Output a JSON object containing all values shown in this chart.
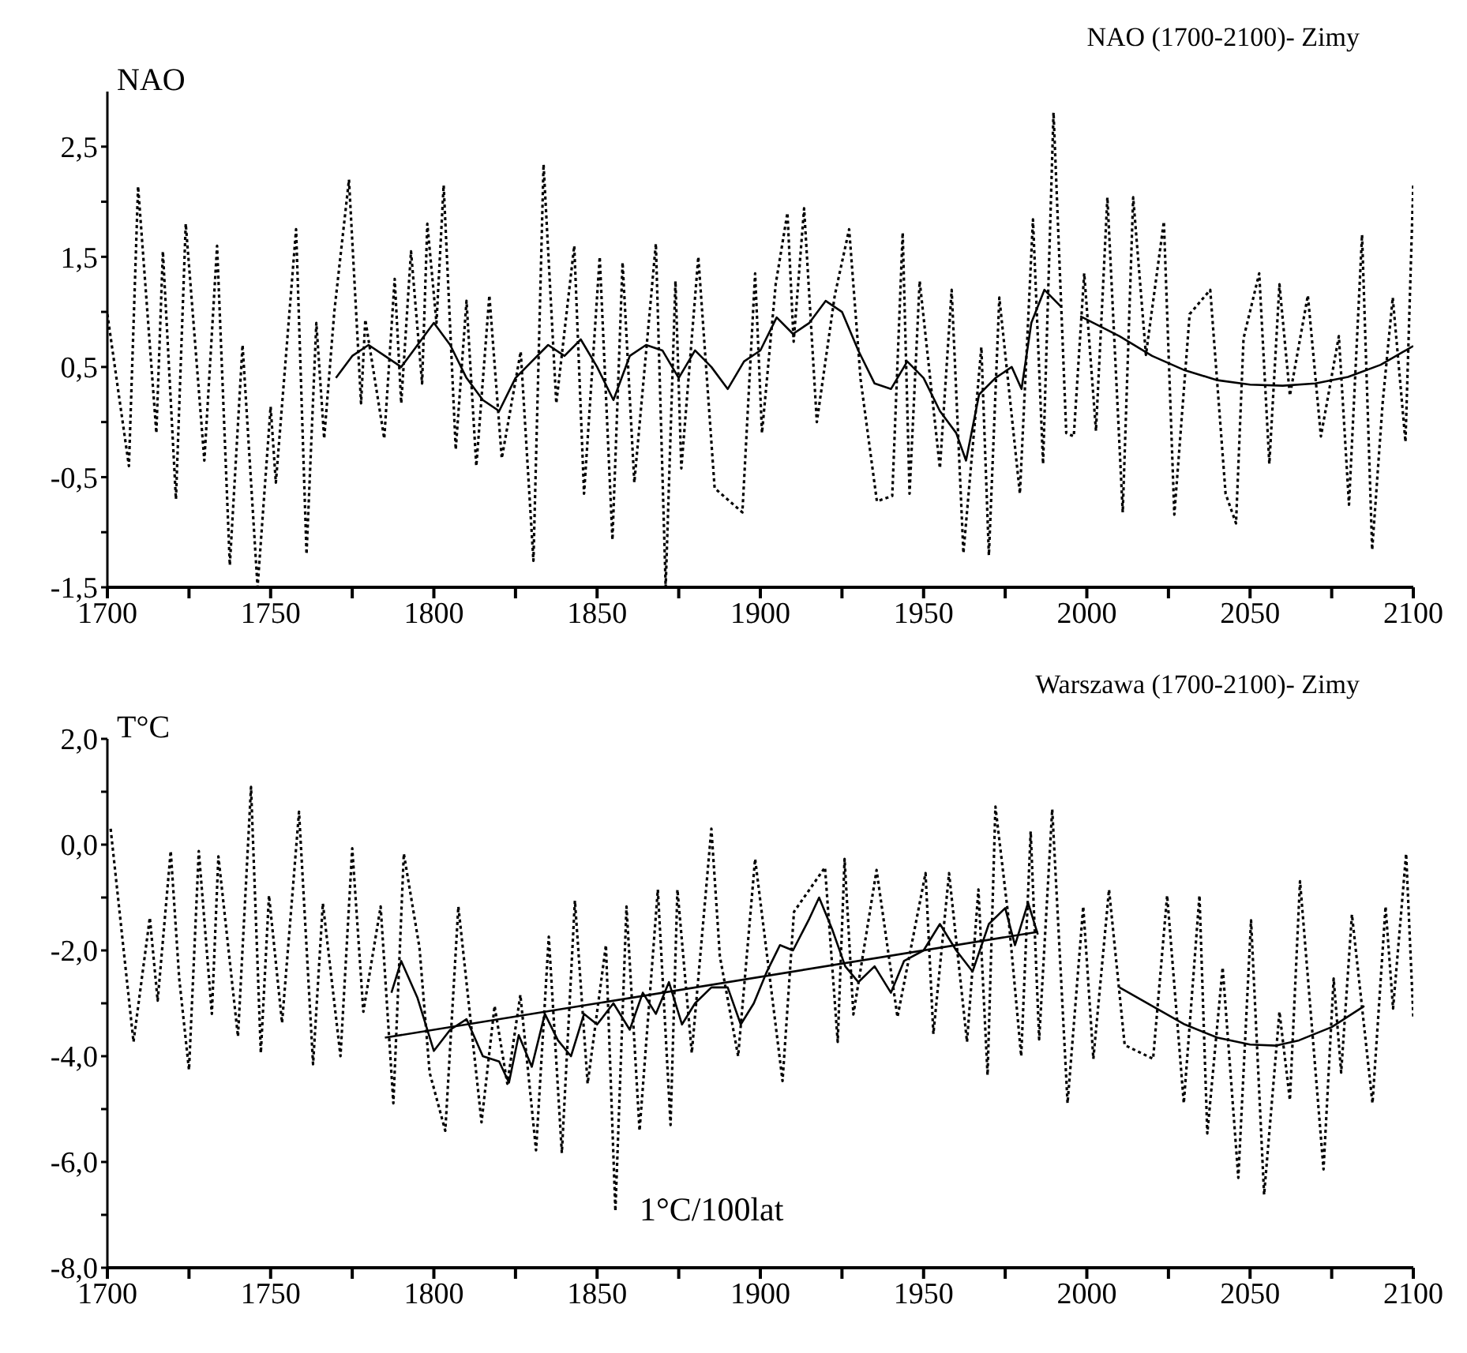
{
  "chart_data": [
    {
      "type": "line",
      "title": "NAO (1700-2100)- Zimy",
      "ylabel": "NAO",
      "xlim": [
        1700,
        2100
      ],
      "xticks": [
        1700,
        {
          "value": 1725,
          "label": null
        },
        1750,
        {
          "value": 1775,
          "label": null
        },
        1800,
        {
          "value": 1825,
          "label": null
        },
        1850,
        {
          "value": 1875,
          "label": null
        },
        1900,
        {
          "value": 1925,
          "label": null
        },
        1950,
        {
          "value": 1975,
          "label": null
        },
        2000,
        {
          "value": 2025,
          "label": null
        },
        2050,
        {
          "value": 2075,
          "label": null
        },
        2100
      ],
      "ylim": [
        -1.5,
        3.0
      ],
      "yticks": [
        {
          "value": -1.5,
          "label": "-1,5"
        },
        {
          "value": -1,
          "label": null
        },
        {
          "value": -0.5,
          "label": "-0,5"
        },
        {
          "value": 0,
          "label": null
        },
        {
          "value": 0.5,
          "label": "0,5"
        },
        {
          "value": 1,
          "label": null
        },
        {
          "value": 1.5,
          "label": "1,5"
        },
        {
          "value": 2,
          "label": null
        },
        {
          "value": 2.5,
          "label": "2,5"
        }
      ],
      "series": [
        {
          "color": "#000000",
          "line_style": "dotted",
          "x": [
            1700,
            1706.6,
            1709.4,
            1715,
            1717,
            1721,
            1724,
            1729.7,
            1733.6,
            1737.5,
            1741.4,
            1746,
            1750,
            1751.6,
            1757.8,
            1761,
            1764,
            1766.4,
            1769.5,
            1774,
            1777.7,
            1779,
            1784.8,
            1788,
            1790,
            1793,
            1796.4,
            1798,
            1800.8,
            1803,
            1806.7,
            1810,
            1813,
            1817,
            1820.8,
            1826.6,
            1830.5,
            1833.6,
            1837.5,
            1843,
            1846,
            1850.8,
            1854.7,
            1857.8,
            1861.4,
            1868,
            1871,
            1874,
            1875.8,
            1881,
            1886,
            1894.5,
            1898.4,
            1900.5,
            1904.7,
            1908.3,
            1910.2,
            1913.4,
            1917.3,
            1922.8,
            1927.2,
            1930.7,
            1935.7,
            1940.4,
            1943.6,
            1945.7,
            1948.8,
            1955,
            1958.6,
            1962.2,
            1967.7,
            1970,
            1973.2,
            1979.5,
            1983.5,
            1986.6,
            1989.8,
            1993.7,
            1996,
            1999.2,
            2002.8,
            2006.3,
            2011,
            2014.2,
            2018.1,
            2023.6,
            2026.8,
            2031.5,
            2037.8,
            2042.5,
            2045.7,
            2048,
            2052.8,
            2055.9,
            2059,
            2062.2,
            2067.7,
            2071.7,
            2077.2,
            2080.3,
            2084.3,
            2087.4,
            2090.6,
            2093.7,
            2097.6,
            2100
          ],
          "values": [
            0.98,
            -0.4,
            2.14,
            -0.1,
            1.55,
            -0.7,
            1.8,
            -0.35,
            1.6,
            -1.3,
            0.7,
            -1.5,
            0.14,
            -0.55,
            1.75,
            -1.2,
            0.9,
            -0.15,
            1.0,
            2.2,
            0.17,
            0.93,
            -0.15,
            1.3,
            0.17,
            1.55,
            0.35,
            1.8,
            0.9,
            2.15,
            -0.25,
            1.1,
            -0.4,
            1.15,
            -0.33,
            0.64,
            -1.26,
            2.34,
            0.17,
            1.6,
            -0.65,
            1.5,
            -1.07,
            1.45,
            -0.55,
            1.62,
            -1.5,
            1.28,
            -0.42,
            1.5,
            -0.6,
            -0.82,
            1.35,
            -0.1,
            1.25,
            1.9,
            0.73,
            1.94,
            0.0,
            1.15,
            1.75,
            0.39,
            -0.72,
            -0.67,
            1.72,
            -0.65,
            1.28,
            -0.42,
            1.2,
            -1.19,
            0.68,
            -1.21,
            1.13,
            -0.65,
            1.84,
            -0.38,
            2.81,
            -0.1,
            -0.13,
            1.35,
            -0.08,
            2.04,
            -0.82,
            2.04,
            0.61,
            1.82,
            -0.84,
            0.98,
            1.2,
            -0.65,
            -0.92,
            0.76,
            1.35,
            -0.38,
            1.25,
            0.24,
            1.15,
            -0.13,
            0.78,
            -0.75,
            1.7,
            -1.16,
            0.17,
            1.13,
            -0.18,
            2.17
          ]
        },
        {
          "color": "#000000",
          "line_style": "solid",
          "x": [
            1770,
            1775,
            1780,
            1785,
            1790,
            1795,
            1800,
            1805,
            1810,
            1815,
            1820,
            1825,
            1830,
            1835,
            1840,
            1845,
            1850,
            1855,
            1860,
            1865,
            1870,
            1875,
            1880,
            1885,
            1890,
            1895,
            1900,
            1905,
            1910,
            1915,
            1920,
            1925,
            1930,
            1935,
            1940,
            1945,
            1950,
            1955,
            1960,
            1963,
            1967,
            1972,
            1977,
            1980,
            1983,
            1987,
            1992
          ],
          "values": [
            0.4,
            0.6,
            0.7,
            0.6,
            0.5,
            0.7,
            0.9,
            0.7,
            0.4,
            0.2,
            0.1,
            0.4,
            0.55,
            0.7,
            0.6,
            0.75,
            0.5,
            0.2,
            0.6,
            0.7,
            0.65,
            0.4,
            0.65,
            0.5,
            0.3,
            0.55,
            0.65,
            0.95,
            0.8,
            0.9,
            1.1,
            1.0,
            0.65,
            0.35,
            0.3,
            0.55,
            0.4,
            0.1,
            -0.1,
            -0.35,
            0.25,
            0.4,
            0.5,
            0.3,
            0.9,
            1.2,
            1.05
          ]
        },
        {
          "color": "#000000",
          "line_style": "solid",
          "x": [
            1998,
            2010,
            2020,
            2030,
            2040,
            2050,
            2060,
            2070,
            2080,
            2090,
            2100
          ],
          "values": [
            0.96,
            0.78,
            0.6,
            0.47,
            0.38,
            0.34,
            0.33,
            0.35,
            0.41,
            0.52,
            0.69
          ]
        }
      ]
    },
    {
      "type": "line",
      "title": "Warszawa (1700-2100)- Zimy",
      "ylabel": "T°C",
      "annotations": [
        "1°C/100lat"
      ],
      "xlim": [
        1700,
        2100
      ],
      "xticks": [
        1700,
        {
          "value": 1725,
          "label": null
        },
        1750,
        {
          "value": 1775,
          "label": null
        },
        1800,
        {
          "value": 1825,
          "label": null
        },
        1850,
        {
          "value": 1875,
          "label": null
        },
        1900,
        {
          "value": 1925,
          "label": null
        },
        1950,
        {
          "value": 1975,
          "label": null
        },
        2000,
        {
          "value": 2025,
          "label": null
        },
        2050,
        {
          "value": 2075,
          "label": null
        },
        2100
      ],
      "ylim": [
        -8,
        2
      ],
      "yticks": [
        {
          "value": -8,
          "label": "-8,0"
        },
        {
          "value": -7,
          "label": null
        },
        {
          "value": -6,
          "label": "-6,0"
        },
        {
          "value": -5,
          "label": null
        },
        {
          "value": -4,
          "label": "-4,0"
        },
        {
          "value": -3,
          "label": null
        },
        {
          "value": -2,
          "label": "-2,0"
        },
        {
          "value": -1,
          "label": null
        },
        {
          "value": 0,
          "label": "0,0"
        },
        {
          "value": 1,
          "label": null
        },
        {
          "value": 2,
          "label": "2,0"
        }
      ],
      "series": [
        {
          "color": "#000000",
          "line_style": "dotted",
          "x": [
            1701,
            1708,
            1713,
            1715.4,
            1719.4,
            1722,
            1725,
            1728,
            1732,
            1734,
            1740,
            1744,
            1747,
            1749.5,
            1753.5,
            1758.7,
            1763,
            1766,
            1771.4,
            1775,
            1778.4,
            1783.7,
            1787.6,
            1790.8,
            1795.6,
            1798.7,
            1803.5,
            1807.5,
            1814.6,
            1818.6,
            1822.5,
            1826.5,
            1831.3,
            1835.2,
            1839.2,
            1843.2,
            1847.1,
            1852.7,
            1855.6,
            1859,
            1863,
            1868.6,
            1872.5,
            1874.6,
            1879,
            1885,
            1887.6,
            1893.2,
            1898.4,
            1906.8,
            1910.3,
            1919.8,
            1923.7,
            1925.8,
            1928.5,
            1935.6,
            1942,
            1950.6,
            1953,
            1957.8,
            1963.3,
            1966.8,
            1969.6,
            1972,
            1976,
            1979.9,
            1982.8,
            1985.4,
            1989.4,
            1994.1,
            1998.9,
            2002,
            2006.8,
            2011.6,
            2020.3,
            2024.6,
            2029.7,
            2034.5,
            2036.9,
            2041.6,
            2046.4,
            2050.3,
            2054.3,
            2059,
            2062.2,
            2065.3,
            2072.5,
            2075.6,
            2077.9,
            2081.2,
            2087.5,
            2091.5,
            2093.8,
            2097.8,
            2100
          ],
          "values": [
            0.3,
            -3.73,
            -1.38,
            -2.95,
            -0.12,
            -2.53,
            -4.26,
            -0.12,
            -3.2,
            -0.22,
            -3.63,
            1.09,
            -3.94,
            -0.96,
            -3.37,
            0.62,
            -4.15,
            -1.11,
            -4.0,
            -0.07,
            -3.16,
            -1.17,
            -4.89,
            -0.17,
            -1.95,
            -4.31,
            -5.41,
            -1.17,
            -5.25,
            -3.05,
            -4.52,
            -2.84,
            -5.78,
            -1.74,
            -5.83,
            -1.06,
            -4.52,
            -1.9,
            -6.93,
            -1.17,
            -5.41,
            -0.85,
            -5.3,
            -0.85,
            -3.94,
            0.3,
            -2.11,
            -4.0,
            -0.27,
            -4.47,
            -1.27,
            -0.43,
            -3.73,
            -0.27,
            -3.21,
            -0.48,
            -3.26,
            -0.54,
            -3.58,
            -0.54,
            -3.73,
            -0.85,
            -4.36,
            0.72,
            -1.38,
            -4.0,
            0.25,
            -3.68,
            0.67,
            -4.89,
            -1.17,
            -4.05,
            -0.85,
            -3.79,
            -4.05,
            -0.96,
            -4.89,
            -0.96,
            -5.46,
            -2.32,
            -6.3,
            -1.43,
            -6.62,
            -3.16,
            -4.83,
            -0.69,
            -6.14,
            -2.53,
            -4.31,
            -1.32,
            -4.89,
            -1.17,
            -3.1,
            -0.17,
            -3.26
          ]
        },
        {
          "color": "#000000",
          "line_style": "solid",
          "x": [
            1787,
            1790,
            1795,
            1800,
            1805,
            1810,
            1815,
            1820,
            1823,
            1826,
            1830,
            1834,
            1838,
            1842,
            1846,
            1850,
            1855,
            1860,
            1864,
            1868,
            1872,
            1876,
            1880,
            1885,
            1890,
            1894,
            1898,
            1902,
            1906,
            1910,
            1915,
            1918,
            1922,
            1926,
            1930,
            1935,
            1940,
            1944,
            1950,
            1955,
            1960,
            1965,
            1970,
            1975,
            1978,
            1982,
            1985
          ],
          "values": [
            -2.8,
            -2.2,
            -2.9,
            -3.9,
            -3.5,
            -3.3,
            -4.0,
            -4.1,
            -4.5,
            -3.6,
            -4.2,
            -3.2,
            -3.7,
            -4.0,
            -3.2,
            -3.4,
            -3.0,
            -3.5,
            -2.8,
            -3.2,
            -2.6,
            -3.4,
            -3.0,
            -2.7,
            -2.7,
            -3.4,
            -3.0,
            -2.4,
            -1.9,
            -2.0,
            -1.4,
            -1.0,
            -1.6,
            -2.3,
            -2.6,
            -2.3,
            -2.8,
            -2.2,
            -2.0,
            -1.5,
            -2.0,
            -2.4,
            -1.5,
            -1.2,
            -1.9,
            -1.1,
            -1.7
          ]
        },
        {
          "color": "#000000",
          "line_style": "solid",
          "x": [
            1785,
            1985
          ],
          "values": [
            -3.65,
            -1.65
          ]
        },
        {
          "color": "#000000",
          "line_style": "solid",
          "x": [
            2010,
            2020,
            2030,
            2040,
            2050,
            2058,
            2065,
            2075,
            2085
          ],
          "values": [
            -2.7,
            -3.05,
            -3.4,
            -3.65,
            -3.78,
            -3.8,
            -3.7,
            -3.45,
            -3.05
          ]
        }
      ]
    }
  ]
}
